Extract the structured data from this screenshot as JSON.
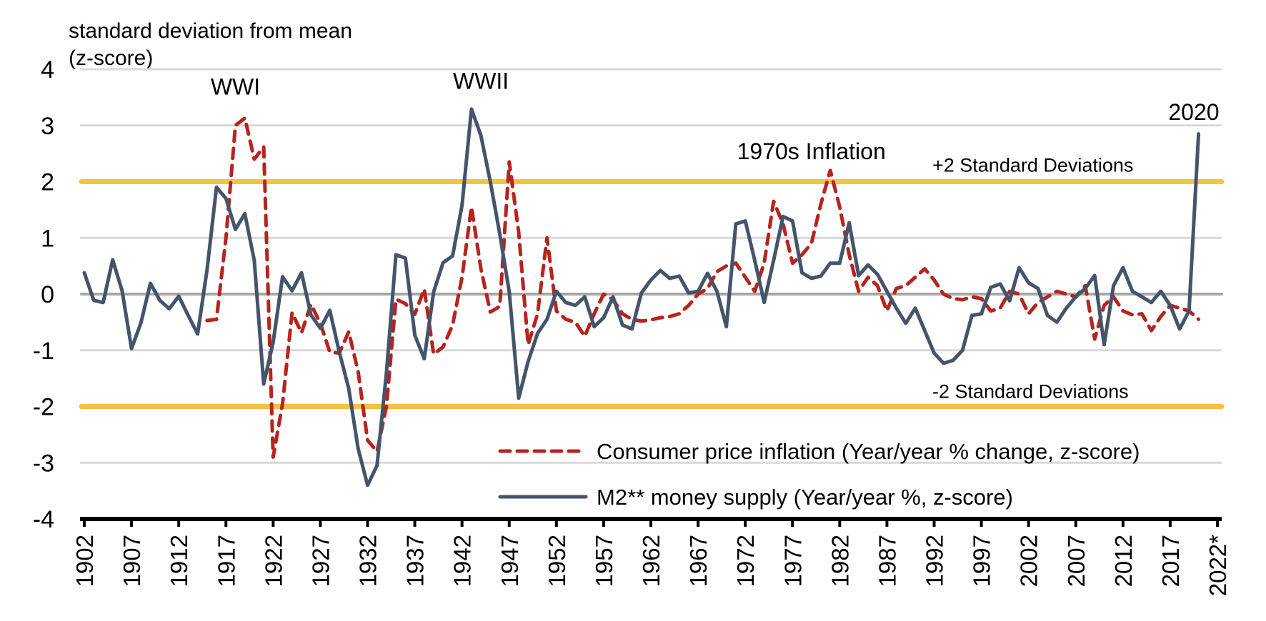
{
  "chart_data": {
    "type": "line",
    "title": "",
    "ylabel": "standard deviation from mean\n(z-score)",
    "ylabel_lines": [
      "standard deviation from mean",
      "(z-score)"
    ],
    "xlabel": "",
    "ylim": [
      -4,
      4
    ],
    "yticks": [
      4,
      3,
      2,
      1,
      0,
      -1,
      -2,
      -3,
      -4
    ],
    "ytick_labels": [
      "4",
      "3",
      "2",
      "1",
      "0",
      "-1",
      "-2",
      "-3",
      "-4"
    ],
    "xlim": [
      1902,
      2022
    ],
    "xticks": [
      1902,
      1907,
      1912,
      1917,
      1922,
      1927,
      1932,
      1937,
      1942,
      1947,
      1952,
      1957,
      1962,
      1967,
      1972,
      1977,
      1982,
      1987,
      1992,
      1997,
      2002,
      2007,
      2012,
      2017,
      2022
    ],
    "xtick_labels": [
      "1902",
      "1907",
      "1912",
      "1917",
      "1922",
      "1927",
      "1932",
      "1937",
      "1942",
      "1947",
      "1952",
      "1957",
      "1962",
      "1967",
      "1972",
      "1977",
      "1982",
      "1987",
      "1992",
      "1997",
      "2002",
      "2007",
      "2012",
      "2017",
      "2022*"
    ],
    "grid": true,
    "reference_lines": [
      {
        "value": 2,
        "label": "+2 Standard Deviations",
        "color": "#F5C242"
      },
      {
        "value": -2,
        "label": "-2 Standard Deviations",
        "color": "#F5C242"
      },
      {
        "value": 0,
        "label": "",
        "color": "#A6A6A6"
      }
    ],
    "annotations": [
      {
        "text": "WWI",
        "x": 1918,
        "y": 3.55
      },
      {
        "text": "WWII",
        "x": 1944,
        "y": 3.65
      },
      {
        "text": "1970s Inflation",
        "x": 1979,
        "y": 2.4
      },
      {
        "text": "2020",
        "x": 2019.5,
        "y": 3.1
      }
    ],
    "legend": {
      "placement": "bottom-right"
    },
    "series": [
      {
        "name": "Consumer price inflation (Year/year % change, z-score)",
        "style": "dashed",
        "color": "#B5251D",
        "start_year": 1915,
        "values": [
          -0.47,
          -0.45,
          1.0,
          3.0,
          3.13,
          2.4,
          2.62,
          -2.9,
          -1.95,
          -0.33,
          -0.69,
          -0.18,
          -0.52,
          -1.03,
          -1.05,
          -0.67,
          -1.38,
          -2.6,
          -2.8,
          -2.0,
          -0.09,
          -0.17,
          -0.36,
          0.09,
          -1.07,
          -0.94,
          -0.55,
          0.3,
          1.55,
          0.45,
          -0.32,
          -0.22,
          2.35,
          1.1,
          -0.9,
          -0.35,
          1.0,
          -0.3,
          -0.45,
          -0.5,
          -0.75,
          -0.35,
          0.0,
          -0.1,
          -0.35,
          -0.45,
          -0.48,
          -0.46,
          -0.42,
          -0.4,
          -0.35,
          -0.2,
          0.0,
          0.1,
          0.4,
          0.5,
          0.55,
          0.3,
          0.05,
          0.55,
          1.65,
          1.25,
          0.55,
          0.7,
          0.9,
          1.6,
          2.2,
          1.55,
          0.7,
          0.05,
          0.3,
          0.15,
          -0.3,
          0.1,
          0.15,
          0.3,
          0.45,
          0.25,
          0.0,
          -0.08,
          -0.1,
          -0.05,
          -0.08,
          -0.3,
          -0.25,
          0.05,
          0.0,
          -0.35,
          -0.15,
          -0.05,
          0.05,
          0.0,
          -0.05,
          0.15,
          -0.8,
          -0.2,
          -0.05,
          -0.3,
          -0.37,
          -0.35,
          -0.65,
          -0.4,
          -0.2,
          -0.25,
          -0.3,
          -0.45
        ]
      },
      {
        "name": "M2** money supply (Year/year %, z-score)",
        "style": "solid",
        "color": "#44546A",
        "start_year": 1902,
        "values": [
          0.38,
          -0.11,
          -0.15,
          0.61,
          0.06,
          -0.97,
          -0.51,
          0.19,
          -0.11,
          -0.26,
          -0.04,
          -0.38,
          -0.71,
          0.43,
          1.9,
          1.7,
          1.15,
          1.43,
          0.6,
          -1.6,
          -0.86,
          0.31,
          0.06,
          0.38,
          -0.37,
          -0.61,
          -0.29,
          -1.03,
          -1.68,
          -2.75,
          -3.4,
          -3.05,
          -1.4,
          0.7,
          0.64,
          -0.73,
          -1.15,
          0.04,
          0.56,
          0.68,
          1.58,
          3.29,
          2.82,
          2.0,
          1.07,
          0.04,
          -1.85,
          -1.2,
          -0.7,
          -0.45,
          0.05,
          -0.15,
          -0.2,
          -0.05,
          -0.58,
          -0.42,
          -0.05,
          -0.55,
          -0.62,
          0.02,
          0.25,
          0.42,
          0.28,
          0.32,
          0.02,
          0.05,
          0.37,
          0.05,
          -0.58,
          1.25,
          1.3,
          0.6,
          -0.15,
          0.6,
          1.38,
          1.3,
          0.38,
          0.28,
          0.32,
          0.55,
          0.55,
          1.27,
          0.33,
          0.52,
          0.35,
          0.05,
          -0.25,
          -0.52,
          -0.25,
          -0.65,
          -1.05,
          -1.23,
          -1.18,
          -1.0,
          -0.38,
          -0.35,
          0.12,
          0.18,
          -0.12,
          0.47,
          0.2,
          0.1,
          -0.38,
          -0.5,
          -0.25,
          -0.05,
          0.1,
          0.33,
          -0.9,
          0.15,
          0.47,
          0.05,
          -0.05,
          -0.15,
          0.05,
          -0.2,
          -0.62,
          -0.3,
          2.85
        ]
      }
    ]
  }
}
